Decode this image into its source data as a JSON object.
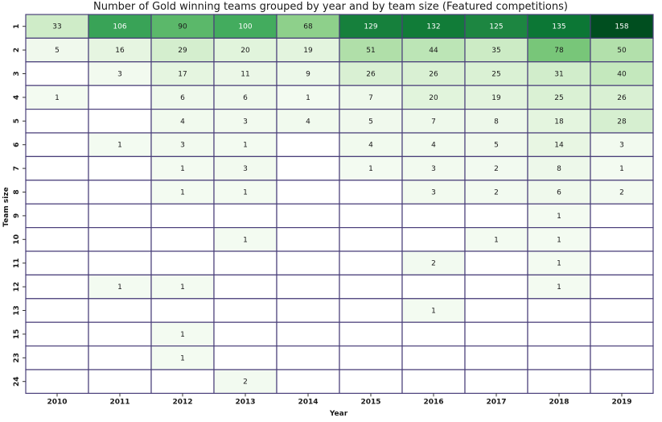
{
  "chart_data": {
    "type": "heatmap",
    "title": "Number of Gold winning teams grouped by year and by team size (Featured competitions)",
    "xlabel": "Year",
    "ylabel": "Team size",
    "x": [
      "2010",
      "2011",
      "2012",
      "2013",
      "2014",
      "2015",
      "2016",
      "2017",
      "2018",
      "2019"
    ],
    "y": [
      "1",
      "2",
      "3",
      "4",
      "5",
      "6",
      "7",
      "8",
      "9",
      "10",
      "11",
      "12",
      "13",
      "15",
      "23",
      "24"
    ],
    "values": [
      [
        33,
        106,
        90,
        100,
        68,
        129,
        132,
        125,
        135,
        158
      ],
      [
        5,
        16,
        29,
        20,
        19,
        51,
        44,
        35,
        78,
        50
      ],
      [
        null,
        3,
        17,
        11,
        9,
        26,
        26,
        25,
        31,
        40
      ],
      [
        1,
        null,
        6,
        6,
        1,
        7,
        20,
        19,
        25,
        26
      ],
      [
        null,
        null,
        4,
        3,
        4,
        5,
        7,
        8,
        18,
        28
      ],
      [
        null,
        1,
        3,
        1,
        null,
        4,
        4,
        5,
        14,
        3
      ],
      [
        null,
        null,
        1,
        3,
        null,
        1,
        3,
        2,
        8,
        1
      ],
      [
        null,
        null,
        1,
        1,
        null,
        null,
        3,
        2,
        6,
        2
      ],
      [
        null,
        null,
        null,
        null,
        null,
        null,
        null,
        null,
        1,
        null
      ],
      [
        null,
        null,
        null,
        1,
        null,
        null,
        null,
        1,
        1,
        null
      ],
      [
        null,
        null,
        null,
        null,
        null,
        null,
        2,
        null,
        1,
        null
      ],
      [
        null,
        1,
        1,
        null,
        null,
        null,
        null,
        null,
        1,
        null
      ],
      [
        null,
        null,
        null,
        null,
        null,
        null,
        1,
        null,
        null,
        null
      ],
      [
        null,
        null,
        1,
        null,
        null,
        null,
        null,
        null,
        null,
        null
      ],
      [
        null,
        null,
        1,
        null,
        null,
        null,
        null,
        null,
        null,
        null
      ],
      [
        null,
        null,
        null,
        2,
        null,
        null,
        null,
        null,
        null,
        null
      ]
    ],
    "colormap": "Greens",
    "grid": true
  }
}
